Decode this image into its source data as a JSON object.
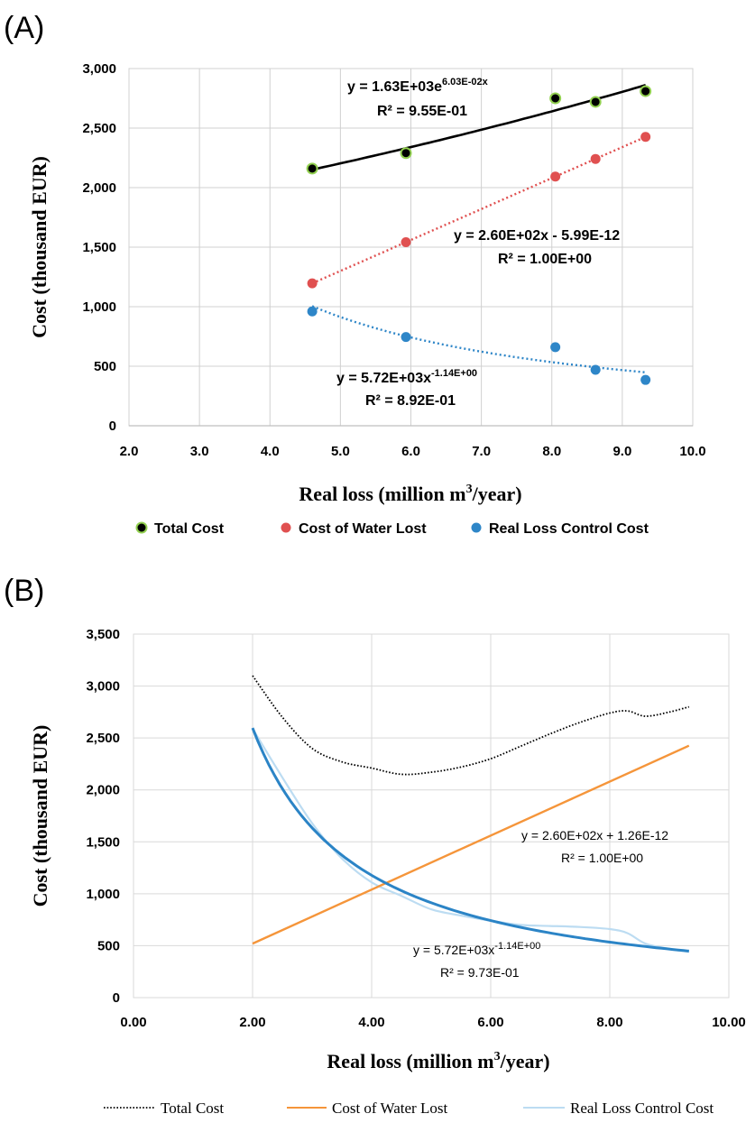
{
  "panels": {
    "a_label": "(A)",
    "b_label": "(B)"
  },
  "chart_data": [
    {
      "type": "scatter",
      "panel": "(A)",
      "xlabel": "Real loss (million m³/year)",
      "ylabel": "Cost (thousand EUR)",
      "xlim": [
        2.0,
        10.0
      ],
      "ylim": [
        0,
        3000
      ],
      "x_ticks": [
        "2.0",
        "3.0",
        "4.0",
        "5.0",
        "6.0",
        "7.0",
        "8.0",
        "9.0",
        "10.0"
      ],
      "y_ticks": [
        "0",
        "500",
        "1,000",
        "1,500",
        "2,000",
        "2,500",
        "3,000"
      ],
      "grid": true,
      "legend_position": "bottom",
      "series": [
        {
          "name": "Total Cost",
          "color": "#000000",
          "marker_fill": "#000000",
          "marker_edge": "#92d050",
          "x": [
            4.6,
            5.93,
            8.05,
            8.62,
            9.33
          ],
          "y": [
            2160,
            2290,
            2750,
            2720,
            2810
          ],
          "trend": {
            "kind": "exponential",
            "a": 1630,
            "b": 0.0603,
            "style": "solid",
            "color": "#000000"
          },
          "equation": "y = 1.63E+03e",
          "equation_exp": "6.03E-02x",
          "r2": "R² = 9.55E-01"
        },
        {
          "name": "Cost of Water Lost",
          "color": "#e05050",
          "x": [
            4.6,
            5.93,
            8.05,
            8.62,
            9.33
          ],
          "y": [
            1196,
            1542,
            2093,
            2241,
            2426
          ],
          "trend": {
            "kind": "linear",
            "m": 260,
            "c": 0,
            "style": "dotted",
            "color": "#e05050"
          },
          "equation": "y = 2.60E+02x - 5.99E-12",
          "r2": "R² = 1.00E+00"
        },
        {
          "name": "Real Loss Control Cost",
          "color": "#2e86c8",
          "x": [
            4.6,
            5.93,
            8.05,
            8.62,
            9.33
          ],
          "y": [
            960,
            745,
            660,
            470,
            385
          ],
          "trend": {
            "kind": "power",
            "a": 5720,
            "b": -1.14,
            "style": "dotted",
            "color": "#2e86c8"
          },
          "equation": "y = 5.72E+03x",
          "equation_exp": "-1.14E+00",
          "r2": "R² = 8.92E-01"
        }
      ]
    },
    {
      "type": "line",
      "panel": "(B)",
      "xlabel": "Real loss (million m³/year)",
      "ylabel": "Cost (thousand EUR)",
      "xlim": [
        0.0,
        10.0
      ],
      "ylim": [
        0,
        3500
      ],
      "x_ticks": [
        "0.00",
        "2.00",
        "4.00",
        "6.00",
        "8.00",
        "10.00"
      ],
      "y_ticks": [
        "0",
        "500",
        "1,000",
        "1,500",
        "2,000",
        "2,500",
        "3,000",
        "3,500"
      ],
      "grid": true,
      "legend_position": "bottom",
      "series": [
        {
          "name": "Total Cost",
          "color": "#000000",
          "style": "dotted",
          "x": [
            2.0,
            2.5,
            3.0,
            3.5,
            4.0,
            4.5,
            5.0,
            5.5,
            6.0,
            6.5,
            7.0,
            7.5,
            8.0,
            8.3,
            8.6,
            9.0,
            9.33
          ],
          "y": [
            3100,
            2700,
            2400,
            2270,
            2210,
            2150,
            2170,
            2220,
            2300,
            2420,
            2540,
            2650,
            2740,
            2760,
            2710,
            2750,
            2800
          ]
        },
        {
          "name": "Cost of Water Lost",
          "color": "#f5953a",
          "style": "solid",
          "x": [
            2.0,
            9.33
          ],
          "y": [
            520,
            2426
          ]
        },
        {
          "name": "Real Loss Control Cost",
          "color": "#bcdcf2",
          "style": "solid",
          "x": [
            2.0,
            2.5,
            3.0,
            3.5,
            4.0,
            4.5,
            5.0,
            5.5,
            6.0,
            6.5,
            7.0,
            7.5,
            8.0,
            8.3,
            8.6,
            9.0,
            9.33
          ],
          "y": [
            2590,
            2120,
            1680,
            1340,
            1110,
            980,
            850,
            790,
            740,
            700,
            690,
            680,
            660,
            620,
            520,
            470,
            440
          ]
        }
      ],
      "trendlines": [
        {
          "series": "Cost of Water Lost",
          "kind": "linear",
          "m": 260,
          "c": 0,
          "color": "#f5953a",
          "equation": "y = 2.60E+02x + 1.26E-12",
          "r2": "R² = 1.00E+00"
        },
        {
          "series": "Real Loss Control Cost",
          "kind": "power",
          "a": 5720,
          "b": -1.14,
          "color": "#2b84c6",
          "equation": "y = 5.72E+03x",
          "equation_exp": "-1.14E+00",
          "r2": "R² = 9.73E-01"
        }
      ]
    }
  ]
}
